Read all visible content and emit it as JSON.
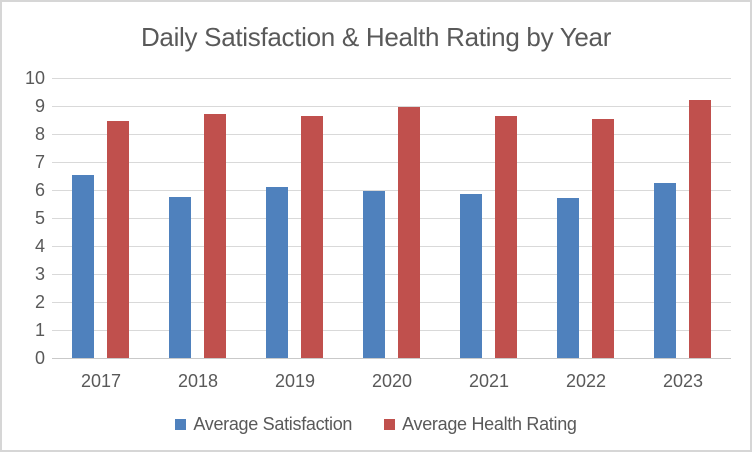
{
  "chart_data": {
    "type": "bar",
    "title": "Daily Satisfaction & Health Rating by Year",
    "categories": [
      "2017",
      "2018",
      "2019",
      "2020",
      "2021",
      "2022",
      "2023"
    ],
    "series": [
      {
        "name": "Average Satisfaction",
        "color": "#4F81BD",
        "values": [
          6.55,
          5.75,
          6.1,
          5.95,
          5.85,
          5.7,
          6.25
        ]
      },
      {
        "name": "Average Health Rating",
        "color": "#C0504D",
        "values": [
          8.45,
          8.7,
          8.65,
          8.95,
          8.65,
          8.55,
          9.2
        ]
      }
    ],
    "xlabel": "",
    "ylabel": "",
    "ylim": [
      0,
      10
    ],
    "ytick_interval": 1,
    "grid": true,
    "legend_position": "bottom"
  },
  "colors": {
    "text": "#595959",
    "gridline": "#D9D9D9",
    "axis_line": "#C9C9C9",
    "frame_border": "#D6D6D6",
    "background": "#FFFFFF"
  }
}
